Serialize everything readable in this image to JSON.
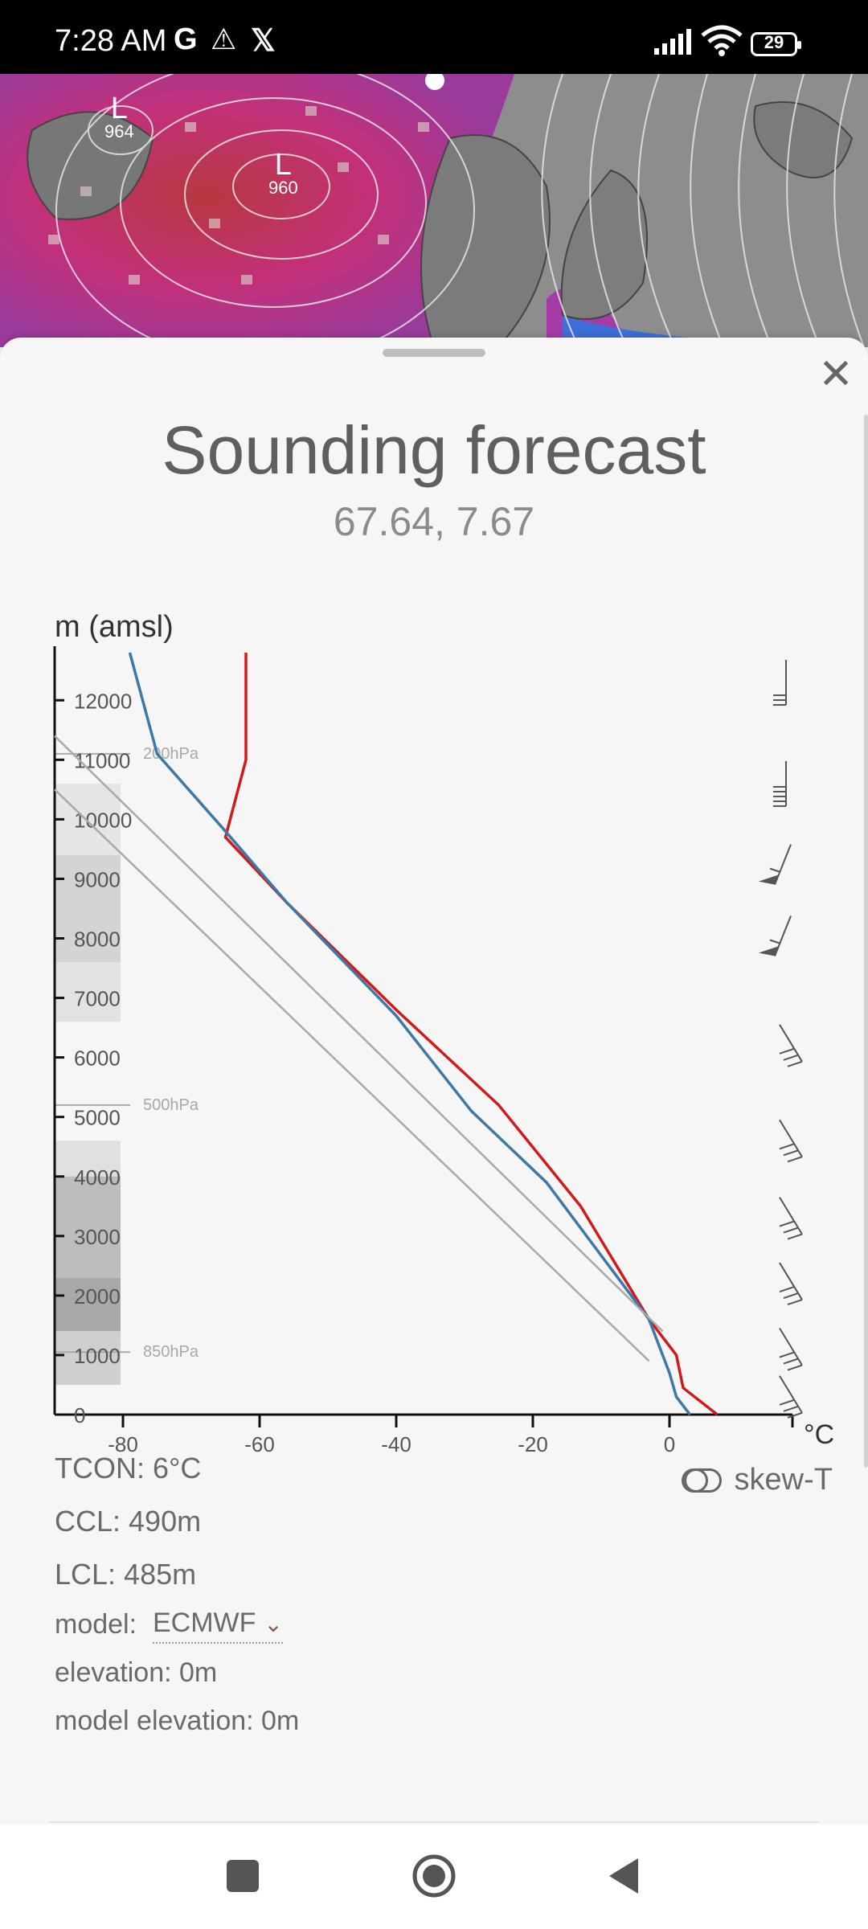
{
  "status_bar": {
    "time": "7:28 AM",
    "icons": [
      "google-g-icon",
      "warning-icon",
      "x-icon",
      "signal-icon",
      "wifi-icon",
      "battery-icon"
    ],
    "battery_level": "29"
  },
  "map": {
    "lows": [
      {
        "letter": "L",
        "pressure": "964"
      },
      {
        "letter": "L",
        "pressure": "960"
      }
    ]
  },
  "sheet": {
    "title": "Sounding forecast",
    "coordinates": "67.64, 7.67"
  },
  "chart_data": {
    "type": "line",
    "ylabel": "m (amsl)",
    "xlabel": "°C",
    "y_ticks": [
      "0",
      "1000",
      "2000",
      "3000",
      "4000",
      "5000",
      "6000",
      "7000",
      "8000",
      "9000",
      "10000",
      "11000",
      "12000"
    ],
    "x_ticks": [
      "-80",
      "-60",
      "-40",
      "-20",
      "0"
    ],
    "ylim": [
      0,
      12800
    ],
    "xlim": [
      -90,
      18
    ],
    "pressure_levels": [
      {
        "label": "850hPa",
        "height": 1050
      },
      {
        "label": "500hPa",
        "height": 5200
      },
      {
        "label": "200hPa",
        "height": 11100
      }
    ],
    "series": [
      {
        "color": "#d11a1a",
        "points": [
          [
            7,
            0
          ],
          [
            2,
            450
          ],
          [
            1,
            1000
          ],
          [
            -3,
            1600
          ],
          [
            -13,
            3500
          ],
          [
            -25,
            5200
          ],
          [
            -40,
            6800
          ],
          [
            -56,
            8600
          ],
          [
            -65,
            9700
          ],
          [
            -62,
            11000
          ],
          [
            -62,
            12800
          ]
        ]
      },
      {
        "color": "#3d79a8",
        "points": [
          [
            3,
            0
          ],
          [
            1,
            300
          ],
          [
            0,
            700
          ],
          [
            -3,
            1600
          ],
          [
            -18,
            3900
          ],
          [
            -29,
            5100
          ],
          [
            -40,
            6700
          ],
          [
            -56,
            8600
          ],
          [
            -65,
            9800
          ],
          [
            -75,
            11100
          ],
          [
            -79,
            12800
          ]
        ]
      },
      {
        "color": "#a9a9a9",
        "points": [
          [
            -3,
            900
          ],
          [
            -90,
            10500
          ]
        ]
      },
      {
        "color": "#a9a9a9",
        "points": [
          [
            -1,
            1400
          ],
          [
            -90,
            11400
          ]
        ]
      }
    ],
    "wind_barb_heights": [
      12300,
      10600,
      9200,
      8000,
      6200,
      4600,
      3300,
      2200,
      1100,
      300
    ]
  },
  "details": {
    "tcon": "TCON: 6°C",
    "ccl": "CCL: 490m",
    "lcl": "LCL: 485m",
    "model_label": "model:",
    "model_value": "ECMWF",
    "elevation": "elevation: 0m",
    "model_elevation": "model elevation: 0m",
    "skew_label": "skew-T"
  },
  "nav_bar": {
    "buttons": [
      "recents-square-icon",
      "home-circle-icon",
      "back-triangle-icon"
    ]
  }
}
